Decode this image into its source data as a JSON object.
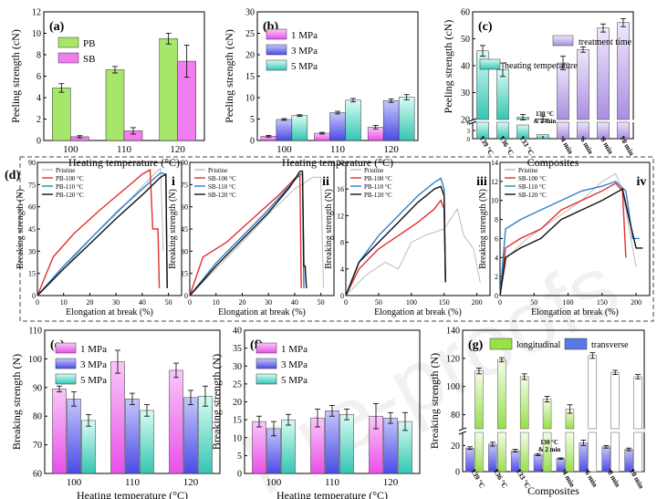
{
  "watermark": "Pre-proofs",
  "panels": {
    "a": {
      "label": "(a)",
      "xlabel": "Heating temperature (°C)",
      "ylabel": "Peeling strength (cN)",
      "ylim": [
        0,
        12
      ],
      "yticks": [
        0,
        2,
        4,
        6,
        8,
        10,
        12
      ],
      "categories": [
        "100",
        "110",
        "120"
      ],
      "legend": [
        "PB",
        "SB"
      ],
      "series": [
        {
          "name": "PB",
          "color": "#a6e66b",
          "values": [
            4.9,
            6.6,
            9.5
          ],
          "err": [
            0.4,
            0.3,
            0.5
          ]
        },
        {
          "name": "SB",
          "color": "#f07ef0",
          "values": [
            0.35,
            0.9,
            7.4
          ],
          "err": [
            0.1,
            0.3,
            1.5
          ]
        }
      ]
    },
    "b": {
      "label": "(b)",
      "xlabel": "Heating temperature (°C)",
      "ylabel": "Peeling strength (cN)",
      "ylim": [
        0,
        30
      ],
      "yticks": [
        0,
        5,
        10,
        15,
        20,
        25,
        30
      ],
      "categories": [
        "100",
        "110",
        "120"
      ],
      "legend": [
        "1 MPa",
        "3 MPa",
        "5 MPa"
      ],
      "series": [
        {
          "name": "1 MPa",
          "color": "#f07ef0",
          "values": [
            1.0,
            1.7,
            3.1
          ],
          "err": [
            0.2,
            0.2,
            0.4
          ]
        },
        {
          "name": "3 MPa",
          "color": "#6f6ff0",
          "values": [
            4.9,
            6.5,
            9.3
          ],
          "err": [
            0.2,
            0.3,
            0.4
          ]
        },
        {
          "name": "5 MPa",
          "color": "#4fd6c4",
          "values": [
            5.8,
            9.4,
            10.1
          ],
          "err": [
            0.2,
            0.4,
            0.6
          ]
        }
      ]
    },
    "c": {
      "label": "(c)",
      "xlabel": "Composites",
      "ylabel": "Peeling strength (cN)",
      "yticks_upper": [
        20,
        30,
        40,
        50,
        60
      ],
      "yticks_lower": [
        0,
        3,
        6
      ],
      "categories": [
        "139 °C",
        "136 °C",
        "133 °C",
        "130 °C & 2 min",
        "4 min",
        "6 min",
        "8 min",
        "10 min"
      ],
      "values": [
        45.5,
        38.5,
        5.0,
        1.5,
        41.0,
        46.0,
        54.0,
        56.0
      ],
      "err": [
        2.0,
        2.5,
        0.8,
        0.6,
        2.5,
        1.0,
        1.5,
        1.5
      ],
      "legend": [
        "heating temperature",
        "treatment time"
      ],
      "colors": {
        "temperature": "#4fd6c4",
        "time": "#b9a0e6"
      },
      "annotation": "130 °C & 2 min"
    },
    "d": {
      "label": "(d)",
      "xlabel": "Elongation at break (%)",
      "ylabel": "Breaking strength (N)",
      "subplots": [
        {
          "roman": "i",
          "legend": [
            "Pristine",
            "PB-100 °C",
            "PB-110 °C",
            "PB-120 °C"
          ],
          "xticks": [
            0,
            10,
            20,
            30,
            40,
            50
          ],
          "yticks": [
            0,
            15,
            30,
            45,
            60,
            75,
            90
          ]
        },
        {
          "roman": "ii",
          "legend": [
            "Pristine",
            "SB-100 °C",
            "SB-110 °C",
            "SB-120 °C"
          ],
          "xticks": [
            0,
            10,
            20,
            30,
            40,
            50
          ],
          "yticks": [
            0,
            15,
            30,
            45,
            60,
            75,
            90
          ]
        },
        {
          "roman": "iii",
          "legend": [
            "Pristine",
            "PB-100 °C",
            "PB-110 °C",
            "PB-120 °C"
          ],
          "xticks": [
            0,
            50,
            100,
            150,
            200
          ],
          "yticks": [
            0,
            4,
            8,
            12,
            16,
            20
          ]
        },
        {
          "roman": "iv",
          "legend": [
            "Pristine",
            "SB-100 °C",
            "SB-110 °C",
            "SB-120 °C"
          ],
          "xticks": [
            0,
            50,
            100,
            150,
            200
          ],
          "yticks": [
            0,
            2,
            4,
            6,
            8,
            10,
            12,
            14
          ]
        }
      ],
      "colors": [
        "#bbbbbb",
        "#e03030",
        "#3080c8",
        "#111111"
      ]
    },
    "e": {
      "label": "(e)",
      "xlabel": "Heating temperature (°C)",
      "ylabel": "Breaking strength (N)",
      "ylim": [
        60,
        110
      ],
      "yticks": [
        60,
        70,
        80,
        90,
        100,
        110
      ],
      "categories": [
        "100",
        "110",
        "120"
      ],
      "legend": [
        "1 MPa",
        "3 MPa",
        "5 MPa"
      ],
      "series": [
        {
          "name": "1 MPa",
          "color": "#f07ef0",
          "values": [
            89.5,
            99.0,
            96.0
          ],
          "err": [
            1.0,
            4.0,
            2.5
          ]
        },
        {
          "name": "3 MPa",
          "color": "#6f6ff0",
          "values": [
            86.0,
            86.0,
            86.5
          ],
          "err": [
            2.5,
            2.0,
            2.5
          ]
        },
        {
          "name": "5 MPa",
          "color": "#4fd6c4",
          "values": [
            78.5,
            82.0,
            87.0
          ],
          "err": [
            2.0,
            2.0,
            3.5
          ]
        }
      ]
    },
    "f": {
      "label": "(f)",
      "xlabel": "Heating temperature (°C)",
      "ylabel": "Breaking strength (N)",
      "ylim": [
        0,
        40
      ],
      "yticks": [
        0,
        5,
        10,
        15,
        20,
        25,
        30,
        35,
        40
      ],
      "categories": [
        "100",
        "110",
        "120"
      ],
      "legend": [
        "1 MPa",
        "3 MPa",
        "5 MPa"
      ],
      "series": [
        {
          "name": "1 MPa",
          "color": "#f07ef0",
          "values": [
            14.5,
            15.5,
            16.0
          ],
          "err": [
            1.5,
            2.5,
            3.5
          ]
        },
        {
          "name": "3 MPa",
          "color": "#6f6ff0",
          "values": [
            12.5,
            17.5,
            15.5
          ],
          "err": [
            2.0,
            1.5,
            1.5
          ]
        },
        {
          "name": "5 MPa",
          "color": "#4fd6c4",
          "values": [
            15.0,
            16.5,
            14.5
          ],
          "err": [
            1.5,
            1.5,
            2.5
          ]
        }
      ]
    },
    "g": {
      "label": "(g)",
      "xlabel": "Composites",
      "ylabel": "Breaking strength (N)",
      "yticks_upper": [
        80,
        100,
        120,
        140
      ],
      "yticks_lower": [
        0,
        20
      ],
      "categories": [
        "139 °C",
        "136 °C",
        "133 °C",
        "130 °C & 2 min",
        "4 min",
        "6 min",
        "8 min",
        "10 min"
      ],
      "legend": [
        "longitudinal",
        "transverse"
      ],
      "colors": {
        "longitudinal": "#9ae04a",
        "transverse": "#5a78e6"
      },
      "longitudinal": [
        111,
        119,
        107,
        91,
        84,
        122,
        110,
        107
      ],
      "transverse": [
        18,
        21,
        16,
        13,
        10,
        22,
        19,
        17
      ],
      "err_long": [
        2.0,
        1.5,
        2.0,
        2.0,
        3.0,
        2.0,
        1.5,
        1.5
      ],
      "err_trans": [
        1.0,
        1.5,
        1.0,
        0.8,
        0.5,
        2.0,
        1.0,
        1.0
      ],
      "time_long": [
        122,
        110,
        107,
        94
      ],
      "annotation": "130 °C & 2 min"
    }
  },
  "chart_data": [
    {
      "type": "bar",
      "title": "(a)",
      "categories": [
        "100",
        "110",
        "120"
      ],
      "xlabel": "Heating temperature (°C)",
      "ylabel": "Peeling strength (cN)",
      "ylim": [
        0,
        12
      ],
      "series": [
        {
          "name": "PB",
          "values": [
            4.9,
            6.6,
            9.5
          ]
        },
        {
          "name": "SB",
          "values": [
            0.35,
            0.9,
            7.4
          ]
        }
      ]
    },
    {
      "type": "bar",
      "title": "(b)",
      "categories": [
        "100",
        "110",
        "120"
      ],
      "xlabel": "Heating temperature (°C)",
      "ylabel": "Peeling strength (cN)",
      "ylim": [
        0,
        30
      ],
      "series": [
        {
          "name": "1 MPa",
          "values": [
            1.0,
            1.7,
            3.1
          ]
        },
        {
          "name": "3 MPa",
          "values": [
            4.9,
            6.5,
            9.3
          ]
        },
        {
          "name": "5 MPa",
          "values": [
            5.8,
            9.4,
            10.1
          ]
        }
      ]
    },
    {
      "type": "bar",
      "title": "(c)",
      "categories": [
        "139 °C",
        "136 °C",
        "133 °C",
        "130 °C & 2 min",
        "4 min",
        "6 min",
        "8 min",
        "10 min"
      ],
      "xlabel": "Composites",
      "ylabel": "Peeling strength (cN)",
      "values": [
        45.5,
        38.5,
        5.0,
        1.5,
        41.0,
        46.0,
        54.0,
        56.0
      ]
    },
    {
      "type": "line",
      "title": "(d)",
      "xlabel": "Elongation at break (%)",
      "ylabel": "Breaking strength (N)",
      "series": [
        {
          "name": "i: PB-100/110/120 °C",
          "values": [
            83,
            84,
            85
          ]
        },
        {
          "name": "ii: SB-100/110/120 °C",
          "values": [
            83,
            84,
            85
          ]
        },
        {
          "name": "iii: PB-100/110/120 °C",
          "values": [
            14.5,
            17.5,
            16.5
          ]
        },
        {
          "name": "iv: SB-100/110/120 °C",
          "values": [
            12,
            12,
            11.5
          ]
        }
      ]
    },
    {
      "type": "bar",
      "title": "(e)",
      "categories": [
        "100",
        "110",
        "120"
      ],
      "xlabel": "Heating temperature (°C)",
      "ylabel": "Breaking strength (N)",
      "ylim": [
        60,
        110
      ],
      "series": [
        {
          "name": "1 MPa",
          "values": [
            89.5,
            99.0,
            96.0
          ]
        },
        {
          "name": "3 MPa",
          "values": [
            86.0,
            86.0,
            86.5
          ]
        },
        {
          "name": "5 MPa",
          "values": [
            78.5,
            82.0,
            87.0
          ]
        }
      ]
    },
    {
      "type": "bar",
      "title": "(f)",
      "categories": [
        "100",
        "110",
        "120"
      ],
      "xlabel": "Heating temperature (°C)",
      "ylabel": "Breaking strength (N)",
      "ylim": [
        0,
        40
      ],
      "series": [
        {
          "name": "1 MPa",
          "values": [
            14.5,
            15.5,
            16.0
          ]
        },
        {
          "name": "3 MPa",
          "values": [
            12.5,
            17.5,
            15.5
          ]
        },
        {
          "name": "5 MPa",
          "values": [
            15.0,
            16.5,
            14.5
          ]
        }
      ]
    },
    {
      "type": "bar",
      "title": "(g)",
      "categories": [
        "139 °C",
        "136 °C",
        "133 °C",
        "130 °C & 2 min",
        "4 min",
        "6 min",
        "8 min",
        "10 min"
      ],
      "xlabel": "Composites",
      "ylabel": "Breaking strength (N)",
      "series": [
        {
          "name": "longitudinal",
          "values": [
            111,
            119,
            107,
            91,
            84,
            122,
            110,
            107
          ]
        },
        {
          "name": "transverse",
          "values": [
            18,
            21,
            16,
            13,
            10,
            22,
            19,
            17
          ]
        }
      ]
    }
  ]
}
